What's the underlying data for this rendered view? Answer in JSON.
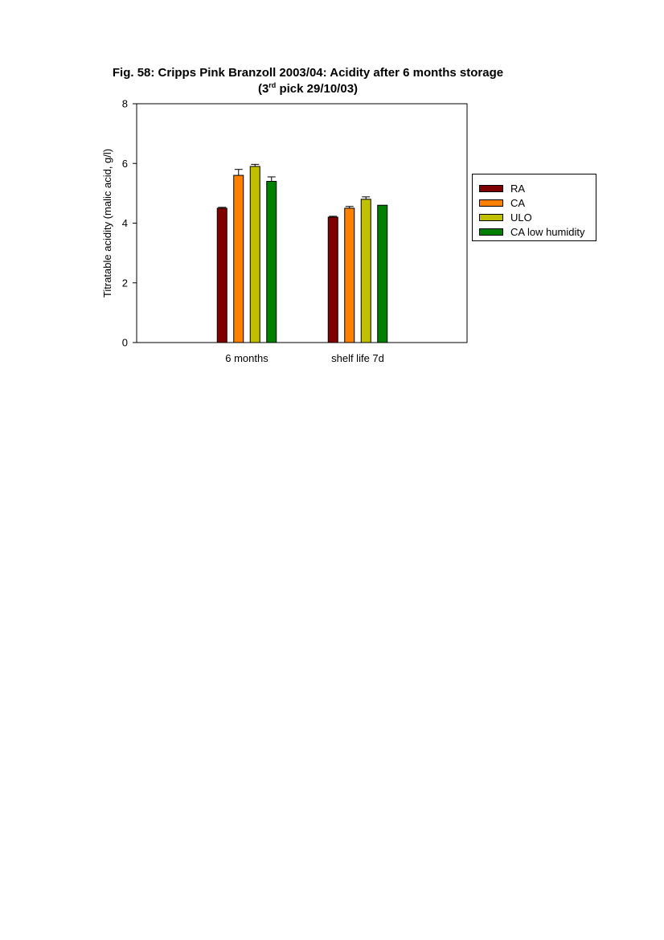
{
  "figure": {
    "title_line1": "Fig. 58: Cripps Pink Branzoll 2003/04: Acidity after 6 months storage",
    "title_line2_prefix": "(3",
    "title_line2_sup": "rd",
    "title_line2_suffix": " pick 29/10/03)"
  },
  "chart_data": {
    "type": "bar",
    "title": "Fig. 58: Cripps Pink Branzoll 2003/04: Acidity after 6 months storage (3rd pick 29/10/03)",
    "categories": [
      "6 months",
      "shelf life 7d"
    ],
    "xlabel": "",
    "ylabel": "Titratable acidity (malic acid, g/l)",
    "ylim": [
      0,
      8
    ],
    "yticks": [
      "0",
      "2",
      "4",
      "6",
      "8"
    ],
    "grid": false,
    "legend_position": "right",
    "series": [
      {
        "name": "RA",
        "color": "#800000",
        "values": [
          4.5,
          4.2
        ],
        "errors": [
          0.03,
          0.03
        ]
      },
      {
        "name": "CA",
        "color": "#ff8000",
        "values": [
          5.6,
          4.5
        ],
        "errors": [
          0.2,
          0.06
        ]
      },
      {
        "name": "ULO",
        "color": "#c0c000",
        "values": [
          5.9,
          4.8
        ],
        "errors": [
          0.07,
          0.08
        ]
      },
      {
        "name": "CA low humidity",
        "color": "#008000",
        "values": [
          5.4,
          4.6
        ],
        "errors": [
          0.15,
          0.0
        ]
      }
    ]
  }
}
